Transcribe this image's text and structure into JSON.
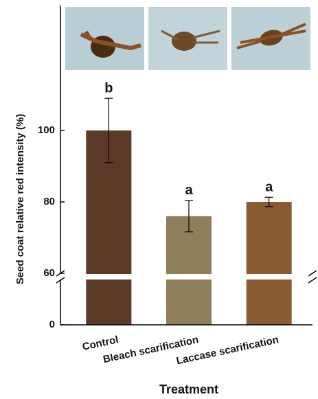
{
  "chart_data": {
    "type": "bar",
    "categories": [
      "Control",
      "Bleach scarification",
      "Laccase scarification"
    ],
    "values": [
      100,
      76,
      80
    ],
    "errors": [
      9,
      4.4,
      1.3
    ],
    "value_labels": [
      "b",
      "a",
      "a"
    ],
    "colors": [
      "#5b3a27",
      "#8e7e5b",
      "#8a5a31"
    ],
    "xlabel": "Treatment",
    "ylabel": "Seed coat relative red intensity (%)",
    "ylim": [
      60,
      135
    ],
    "yticks": [
      60,
      80,
      100
    ],
    "ylim_lower": [
      0,
      60
    ],
    "yticks_lower": [
      0
    ],
    "axis_break": true
  }
}
